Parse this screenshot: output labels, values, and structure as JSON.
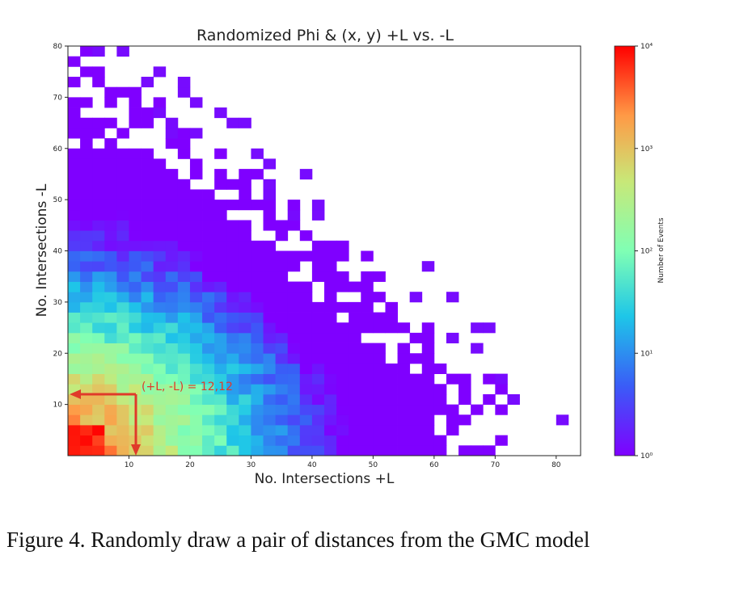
{
  "chart_data": {
    "type": "heatmap",
    "title": "Randomized Phi & (x, y) +L vs. -L",
    "xlabel": "No. Intersections +L",
    "ylabel": "No. Intersections -L",
    "xlim": [
      0,
      84
    ],
    "ylim": [
      0,
      80
    ],
    "xticks": [
      10,
      20,
      30,
      40,
      50,
      60,
      70,
      80
    ],
    "yticks": [
      10,
      20,
      30,
      40,
      50,
      60,
      70,
      80
    ],
    "bin_width": 2,
    "colorbar": {
      "label": "Number of Events",
      "scale": "log",
      "range": [
        1,
        10000
      ],
      "tick_values": [
        1,
        10,
        100,
        1000,
        10000
      ],
      "tick_labels": [
        "10⁰",
        "10¹",
        "10²",
        "10³",
        "10⁴"
      ],
      "colormap": "rainbow"
    },
    "annotation": {
      "text": "(+L, -L) = 12,12",
      "x": 12,
      "y": 12,
      "color": "#e03a2a"
    },
    "description_of_distribution": "Counts peak (~10^4) near origin and decrease toward the diagonal boundary x + y ≈ 84; sparse single-count bins along the edge"
  },
  "caption": "Figure 4.  Randomly draw a pair of distances from the GMC model"
}
